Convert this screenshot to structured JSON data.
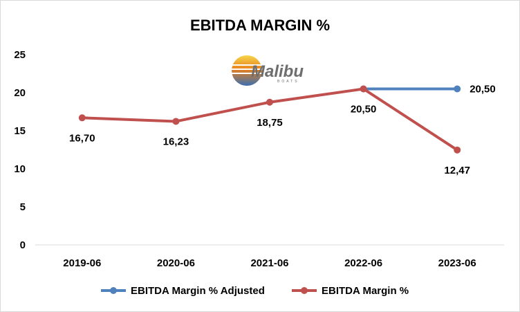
{
  "chart_data": {
    "type": "line",
    "title": "EBITDA MARGIN %",
    "xlabel": "",
    "ylabel": "",
    "categories": [
      "2019-06",
      "2020-06",
      "2021-06",
      "2022-06",
      "2023-06"
    ],
    "ylim": [
      0,
      25
    ],
    "yticks": [
      "0",
      "5",
      "10",
      "15",
      "20",
      "25"
    ],
    "grid": false,
    "legend_position": "bottom",
    "series": [
      {
        "name": "EBITDA Margin % Adjusted",
        "color": "#4f81bd",
        "values": [
          null,
          null,
          null,
          20.5,
          20.5
        ],
        "labels": [
          null,
          null,
          null,
          null,
          "20,50"
        ]
      },
      {
        "name": "EBITDA Margin %",
        "color": "#c0504d",
        "values": [
          16.7,
          16.23,
          18.75,
          20.5,
          12.47
        ],
        "labels": [
          "16,70",
          "16,23",
          "18,75",
          "20,50",
          "12,47"
        ]
      }
    ]
  },
  "logo": {
    "icon": "malibu-boats-logo",
    "text": "Malibu",
    "subtext": "BOATS"
  }
}
